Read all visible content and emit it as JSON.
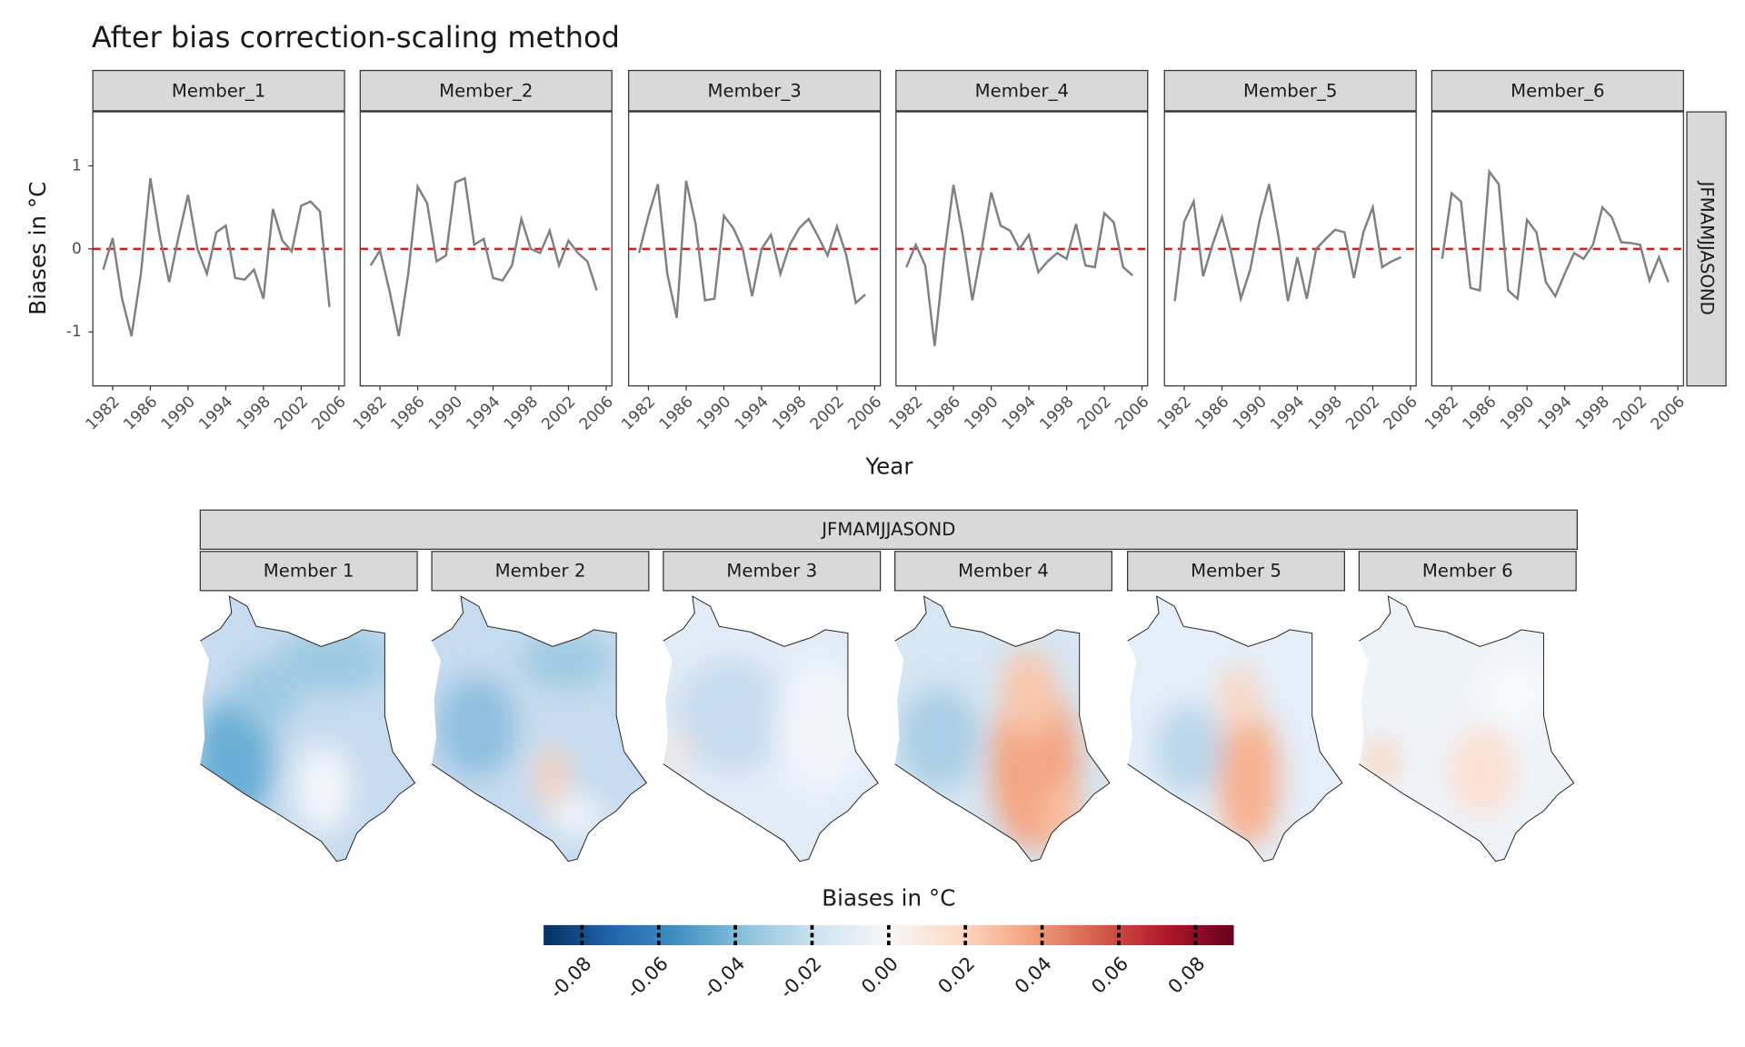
{
  "chart_data": [
    {
      "type": "line",
      "title": "After bias correction-scaling method",
      "ylabel": "Biases in °C",
      "xlabel": "Year",
      "facet_row": "JFMAMJJASOND",
      "x": [
        1981,
        1982,
        1983,
        1984,
        1985,
        1986,
        1987,
        1988,
        1989,
        1990,
        1991,
        1992,
        1993,
        1994,
        1995,
        1996,
        1997,
        1998,
        1999,
        2000,
        2001,
        2002,
        2003,
        2004,
        2005
      ],
      "xlim": [
        1979.9,
        2006.6
      ],
      "xticks": [
        1982,
        1986,
        1990,
        1994,
        1998,
        2002,
        2006
      ],
      "ylim": [
        -1.65,
        1.65
      ],
      "yticks": [
        -1,
        0,
        1
      ],
      "hline": 0,
      "hline_color": "#dd1c1c",
      "grid": false,
      "series": [
        {
          "name": "Member_1",
          "color": "#808080",
          "values": [
            -0.25,
            0.13,
            -0.6,
            -1.05,
            -0.3,
            0.85,
            0.15,
            -0.4,
            0.15,
            0.65,
            0.0,
            -0.3,
            0.2,
            0.28,
            -0.35,
            -0.37,
            -0.25,
            -0.6,
            0.48,
            0.1,
            -0.03,
            0.52,
            0.57,
            0.45,
            -0.7
          ]
        },
        {
          "name": "Member_2",
          "color": "#808080",
          "values": [
            -0.2,
            -0.02,
            -0.5,
            -1.05,
            -0.3,
            0.75,
            0.55,
            -0.15,
            -0.08,
            0.8,
            0.85,
            0.05,
            0.12,
            -0.35,
            -0.38,
            -0.2,
            0.36,
            0.0,
            -0.05,
            0.22,
            -0.2,
            0.1,
            -0.05,
            -0.15,
            -0.5
          ]
        },
        {
          "name": "Member_3",
          "color": "#808080",
          "values": [
            -0.05,
            0.4,
            0.78,
            -0.3,
            -0.83,
            0.82,
            0.3,
            -0.62,
            -0.6,
            0.4,
            0.25,
            0.0,
            -0.57,
            0.0,
            0.17,
            -0.3,
            0.05,
            0.25,
            0.36,
            0.15,
            -0.08,
            0.27,
            -0.08,
            -0.65,
            -0.55
          ]
        },
        {
          "name": "Member_4",
          "color": "#808080",
          "values": [
            -0.22,
            0.05,
            -0.2,
            -1.17,
            -0.1,
            0.77,
            0.15,
            -0.62,
            0.0,
            0.68,
            0.28,
            0.22,
            0.0,
            0.17,
            -0.28,
            -0.15,
            -0.05,
            -0.12,
            0.3,
            -0.2,
            -0.22,
            0.43,
            0.32,
            -0.22,
            -0.32
          ]
        },
        {
          "name": "Member_5",
          "color": "#808080",
          "values": [
            -0.63,
            0.33,
            0.57,
            -0.33,
            0.05,
            0.38,
            -0.05,
            -0.6,
            -0.25,
            0.35,
            0.78,
            0.15,
            -0.63,
            -0.1,
            -0.6,
            0.0,
            0.12,
            0.23,
            0.2,
            -0.35,
            0.2,
            0.5,
            -0.22,
            -0.15,
            -0.1
          ]
        },
        {
          "name": "Member_6",
          "color": "#808080",
          "values": [
            -0.12,
            0.67,
            0.57,
            -0.47,
            -0.5,
            0.93,
            0.78,
            -0.5,
            -0.6,
            0.35,
            0.2,
            -0.4,
            -0.57,
            -0.3,
            -0.05,
            -0.12,
            0.05,
            0.5,
            0.38,
            0.08,
            0.07,
            0.05,
            -0.38,
            -0.1,
            -0.4
          ]
        }
      ]
    },
    {
      "type": "map",
      "title": "JFMAMJJASOND",
      "panels": [
        "Member 1",
        "Member 2",
        "Member 3",
        "Member 4",
        "Member 5",
        "Member 6"
      ],
      "legend_title": "Biases in °C",
      "colorbar": {
        "lim": [
          -0.09,
          0.09
        ],
        "ticks": [
          -0.08,
          -0.06,
          -0.04,
          -0.02,
          {
            "value": 0,
            "label": "0.00"
          },
          0.02,
          0.04,
          0.06,
          0.08
        ],
        "colors": [
          "#053061",
          "#2166ac",
          "#4393c3",
          "#92c5de",
          "#d1e5f0",
          "#f7f7f7",
          "#fddbc7",
          "#f4a582",
          "#d6604d",
          "#b2182b",
          "#67001f"
        ]
      }
    }
  ]
}
